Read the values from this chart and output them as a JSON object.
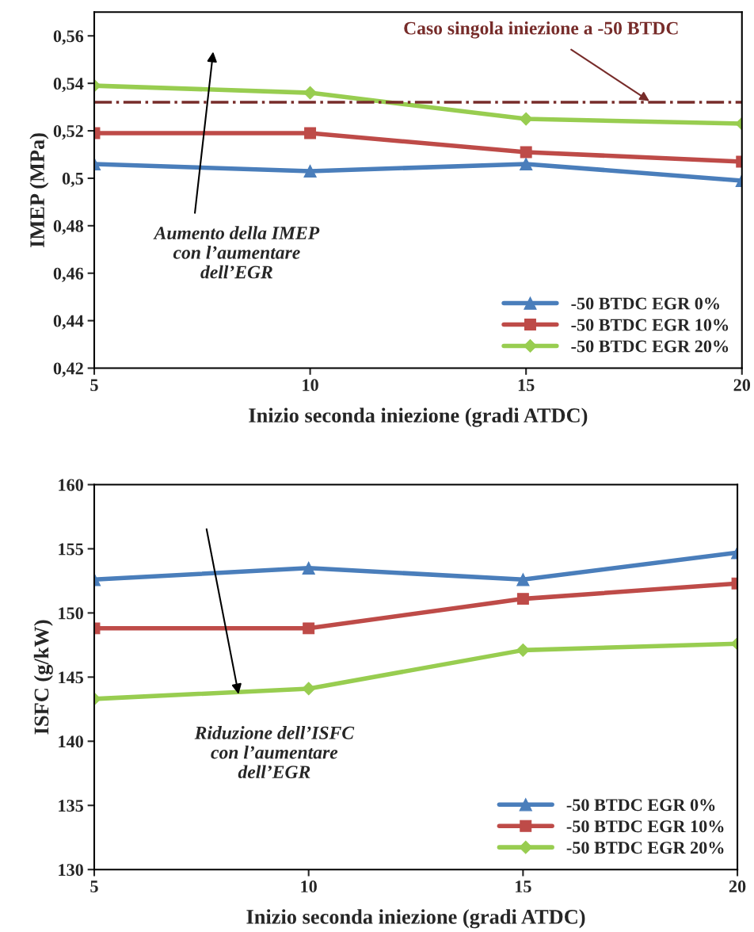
{
  "chart_data": [
    {
      "type": "line",
      "ylabel": "IMEP (MPa)",
      "xlabel": "Inizio seconda iniezione (gradi ATDC)",
      "x": [
        5,
        10,
        15,
        20
      ],
      "xlim": [
        5,
        20
      ],
      "xticks": [
        5,
        10,
        15,
        20
      ],
      "ylim": [
        0.42,
        0.57
      ],
      "yticks": [
        {
          "value": 0.42,
          "label": "0,42"
        },
        {
          "value": 0.44,
          "label": "0,44"
        },
        {
          "value": 0.46,
          "label": "0,46"
        },
        {
          "value": 0.48,
          "label": "0,48"
        },
        {
          "value": 0.5,
          "label": "0,5"
        },
        {
          "value": 0.52,
          "label": "0,52"
        },
        {
          "value": 0.54,
          "label": "0,54"
        },
        {
          "value": 0.56,
          "label": "0,56"
        }
      ],
      "series": [
        {
          "name": "-50 BTDC EGR 0%",
          "color": "#4a7ebb",
          "marker": "triangle",
          "values": [
            0.506,
            0.503,
            0.506,
            0.499
          ]
        },
        {
          "name": "-50 BTDC EGR 10%",
          "color": "#be4b48",
          "marker": "square",
          "values": [
            0.519,
            0.519,
            0.511,
            0.507
          ]
        },
        {
          "name": "-50 BTDC EGR 20%",
          "color": "#98cd50",
          "marker": "diamond",
          "values": [
            0.539,
            0.536,
            0.525,
            0.523
          ]
        }
      ],
      "ref_lines": [
        {
          "axis": "y",
          "value": 0.532,
          "label": "Caso singola iniezione a -50 BTDC",
          "color": "#772c2a",
          "line_style": "dashed"
        }
      ],
      "annotations": [
        "Aumento della IMEP\ncon l’aumentare\ndell’EGR"
      ],
      "legend": "bottom right",
      "grid": false,
      "line_style": "solid"
    },
    {
      "type": "line",
      "ylabel": "ISFC (g/kW)",
      "xlabel": "Inizio seconda iniezione (gradi ATDC)",
      "x": [
        5,
        10,
        15,
        20
      ],
      "xlim": [
        5,
        20
      ],
      "xticks": [
        5,
        10,
        15,
        20
      ],
      "ylim": [
        130,
        160
      ],
      "yticks": [
        130,
        135,
        140,
        145,
        150,
        155,
        160
      ],
      "series": [
        {
          "name": "-50 BTDC EGR 0%",
          "color": "#4a7ebb",
          "marker": "triangle",
          "values": [
            152.6,
            153.5,
            152.6,
            154.7
          ]
        },
        {
          "name": "-50 BTDC EGR 10%",
          "color": "#be4b48",
          "marker": "square",
          "values": [
            148.8,
            148.8,
            151.1,
            152.3
          ]
        },
        {
          "name": "-50 BTDC EGR 20%",
          "color": "#98cd50",
          "marker": "diamond",
          "values": [
            143.3,
            144.1,
            147.1,
            147.6
          ]
        }
      ],
      "annotations": [
        "Riduzione dell’ISFC\ncon l’aumentare\ndell’EGR"
      ],
      "legend": "bottom right",
      "grid": false,
      "line_style": "solid"
    }
  ]
}
